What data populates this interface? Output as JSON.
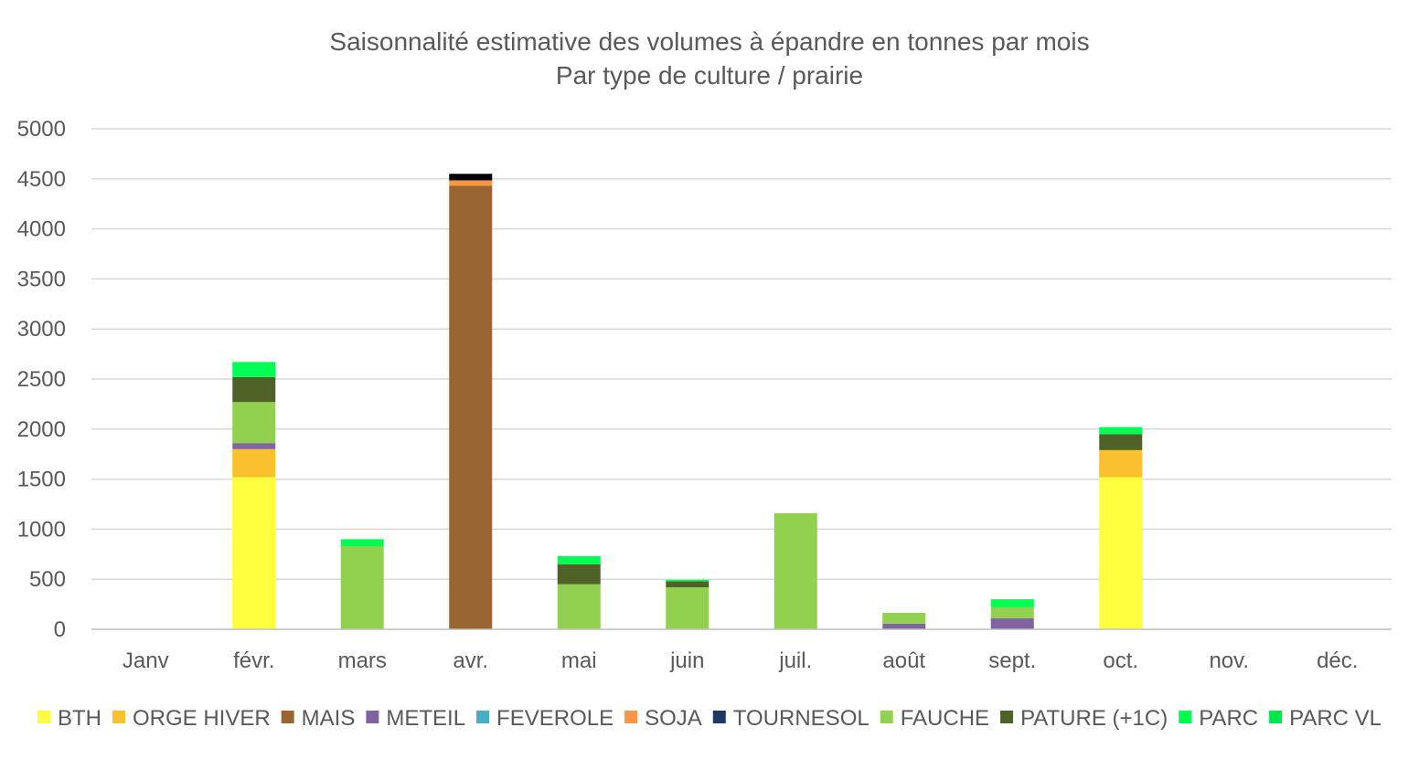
{
  "chart_data": {
    "type": "bar",
    "stacked": true,
    "title": "Saisonnalité estimative des volumes à épandre en tonnes par mois",
    "subtitle": "Par type de culture / prairie",
    "xlabel": "",
    "ylabel": "",
    "ylim": [
      0,
      5000
    ],
    "yticks": [
      0,
      500,
      1000,
      1500,
      2000,
      2500,
      3000,
      3500,
      4000,
      4500,
      5000
    ],
    "grid": true,
    "legend_position": "bottom",
    "categories": [
      "Janv",
      "févr.",
      "mars",
      "avr.",
      "mai",
      "juin",
      "juil.",
      "août",
      "sept.",
      "oct.",
      "nov.",
      "déc."
    ],
    "series": [
      {
        "name": "BTH",
        "color": "#FFFF3F",
        "values": [
          0,
          1520,
          0,
          0,
          0,
          0,
          0,
          0,
          0,
          1520,
          0,
          0
        ]
      },
      {
        "name": "ORGE HIVER",
        "color": "#FBC02D",
        "values": [
          0,
          280,
          0,
          0,
          0,
          0,
          0,
          0,
          0,
          270,
          0,
          0
        ]
      },
      {
        "name": "MAIS",
        "color": "#996633",
        "values": [
          0,
          0,
          0,
          4430,
          0,
          0,
          0,
          0,
          0,
          0,
          0,
          0
        ]
      },
      {
        "name": "METEIL",
        "color": "#8064A2",
        "values": [
          0,
          60,
          0,
          0,
          0,
          0,
          0,
          55,
          110,
          0,
          0,
          0
        ]
      },
      {
        "name": "FEVEROLE",
        "color": "#4BACC6",
        "values": [
          0,
          0,
          0,
          0,
          0,
          0,
          0,
          0,
          0,
          0,
          0,
          0
        ]
      },
      {
        "name": "SOJA",
        "color": "#F79646",
        "values": [
          0,
          0,
          0,
          55,
          0,
          0,
          0,
          0,
          0,
          0,
          0,
          0
        ]
      },
      {
        "name": "TOURNESOL",
        "color": "#1F3864",
        "values": [
          0,
          0,
          0,
          0,
          0,
          0,
          0,
          0,
          0,
          0,
          0,
          0
        ]
      },
      {
        "name": "FAUCHE",
        "color": "#92D050",
        "values": [
          0,
          410,
          830,
          0,
          450,
          420,
          1160,
          110,
          110,
          0,
          0,
          0
        ]
      },
      {
        "name": "PATURE (+1C)",
        "color": "#4F6228",
        "values": [
          0,
          250,
          0,
          0,
          200,
          60,
          0,
          0,
          0,
          160,
          0,
          0
        ]
      },
      {
        "name": "PARC",
        "color": "#00FF50",
        "values": [
          0,
          150,
          70,
          0,
          80,
          15,
          0,
          0,
          80,
          70,
          0,
          0
        ]
      },
      {
        "name": "PARC VL",
        "color": "#00E64D",
        "values": [
          0,
          0,
          0,
          0,
          0,
          0,
          0,
          0,
          0,
          0,
          0,
          0
        ]
      }
    ],
    "extra_segments": [
      {
        "category": "avr.",
        "color": "#000000",
        "value": 65
      }
    ]
  }
}
